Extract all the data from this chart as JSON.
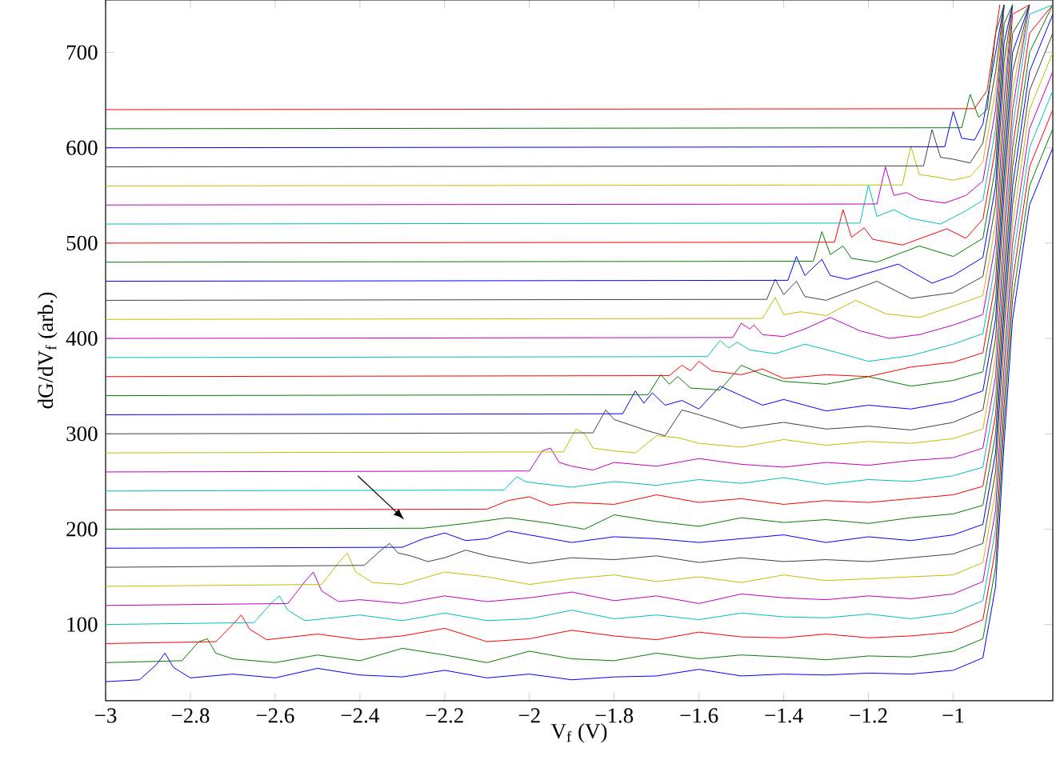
{
  "chart_data": {
    "type": "line",
    "xlabel": "V$_{f}$ (V)",
    "ylabel": "dG/dV$_{f}$ (arb.)",
    "marker": "none",
    "line_style": "solid",
    "xlim": [
      -3,
      -0.765
    ],
    "ylim": [
      20,
      755
    ],
    "xticks": [
      {
        "value": -3,
        "label": "−3"
      },
      {
        "value": -2.8,
        "label": "−2.8"
      },
      {
        "value": -2.6,
        "label": "−2.6"
      },
      {
        "value": -2.4,
        "label": "−2.4"
      },
      {
        "value": -2.2,
        "label": "−2.2"
      },
      {
        "value": -2,
        "label": "−2"
      },
      {
        "value": -1.8,
        "label": "−1.8"
      },
      {
        "value": -1.6,
        "label": "−1.6"
      },
      {
        "value": -1.4,
        "label": "−1.4"
      },
      {
        "value": -1.2,
        "label": "−1.2"
      },
      {
        "value": -1,
        "label": "−1"
      }
    ],
    "yticks": [
      100,
      200,
      300,
      400,
      500,
      600,
      700
    ],
    "series": [
      {
        "color": "#0000ff",
        "x": [
          -3,
          -2.92,
          -2.88,
          -2.86,
          -2.84,
          -2.8,
          -2.7,
          -2.6,
          -2.5,
          -2.4,
          -2.3,
          -2.2,
          -2.1,
          -2.0,
          -1.9,
          -1.8,
          -1.7,
          -1.6,
          -1.5,
          -1.4,
          -1.3,
          -1.2,
          -1.1,
          -1.0,
          -0.93,
          -0.9,
          -0.88,
          -0.86,
          -0.82,
          -0.765
        ],
        "values": [
          40,
          42,
          58,
          70,
          55,
          44,
          48,
          44,
          54,
          47,
          45,
          52,
          44,
          48,
          42,
          45,
          46,
          53,
          46,
          48,
          47,
          49,
          48,
          52,
          65,
          140,
          290,
          420,
          540,
          600
        ]
      },
      {
        "color": "#008000",
        "x": [
          -3,
          -2.82,
          -2.78,
          -2.76,
          -2.74,
          -2.7,
          -2.6,
          -2.5,
          -2.4,
          -2.3,
          -2.2,
          -2.1,
          -2.0,
          -1.9,
          -1.8,
          -1.7,
          -1.6,
          -1.5,
          -1.4,
          -1.3,
          -1.2,
          -1.1,
          -1.0,
          -0.93,
          -0.9,
          -0.88,
          -0.86,
          -0.82,
          -0.765
        ],
        "values": [
          60,
          62,
          82,
          85,
          70,
          64,
          60,
          68,
          62,
          75,
          68,
          60,
          72,
          64,
          62,
          70,
          64,
          68,
          66,
          63,
          67,
          66,
          72,
          85,
          160,
          310,
          440,
          560,
          620
        ]
      },
      {
        "color": "#ff0000",
        "x": [
          -3,
          -2.74,
          -2.7,
          -2.68,
          -2.66,
          -2.62,
          -2.5,
          -2.4,
          -2.3,
          -2.2,
          -2.1,
          -2.0,
          -1.9,
          -1.8,
          -1.7,
          -1.6,
          -1.5,
          -1.4,
          -1.3,
          -1.2,
          -1.1,
          -1.0,
          -0.93,
          -0.9,
          -0.88,
          -0.86,
          -0.82,
          -0.765
        ],
        "values": [
          80,
          82,
          100,
          110,
          95,
          84,
          90,
          84,
          88,
          96,
          82,
          85,
          94,
          88,
          84,
          92,
          87,
          86,
          90,
          86,
          88,
          92,
          105,
          180,
          330,
          460,
          580,
          640
        ]
      },
      {
        "color": "#00bfbf",
        "x": [
          -3,
          -2.65,
          -2.61,
          -2.59,
          -2.57,
          -2.53,
          -2.4,
          -2.3,
          -2.2,
          -2.1,
          -2.0,
          -1.9,
          -1.8,
          -1.7,
          -1.6,
          -1.5,
          -1.4,
          -1.3,
          -1.2,
          -1.1,
          -1.0,
          -0.93,
          -0.9,
          -0.88,
          -0.86,
          -0.82,
          -0.765
        ],
        "values": [
          100,
          102,
          122,
          130,
          115,
          104,
          110,
          104,
          112,
          104,
          106,
          115,
          106,
          110,
          105,
          112,
          108,
          107,
          111,
          106,
          112,
          125,
          200,
          350,
          480,
          600,
          660
        ]
      },
      {
        "color": "#bf00bf",
        "x": [
          -3,
          -2.57,
          -2.53,
          -2.51,
          -2.49,
          -2.45,
          -2.4,
          -2.3,
          -2.2,
          -2.1,
          -2.0,
          -1.9,
          -1.8,
          -1.7,
          -1.6,
          -1.5,
          -1.4,
          -1.3,
          -1.2,
          -1.1,
          -1.0,
          -0.93,
          -0.9,
          -0.88,
          -0.86,
          -0.82,
          -0.765
        ],
        "values": [
          120,
          122,
          145,
          155,
          135,
          124,
          126,
          122,
          130,
          124,
          128,
          134,
          125,
          130,
          122,
          132,
          128,
          126,
          130,
          127,
          132,
          145,
          220,
          370,
          500,
          620,
          680
        ]
      },
      {
        "color": "#bfbf00",
        "x": [
          -3,
          -2.49,
          -2.45,
          -2.43,
          -2.41,
          -2.37,
          -2.3,
          -2.2,
          -2.1,
          -2.0,
          -1.9,
          -1.8,
          -1.7,
          -1.6,
          -1.5,
          -1.4,
          -1.3,
          -1.2,
          -1.1,
          -1.0,
          -0.93,
          -0.9,
          -0.88,
          -0.86,
          -0.82,
          -0.765
        ],
        "values": [
          140,
          142,
          165,
          175,
          155,
          144,
          142,
          155,
          150,
          142,
          148,
          152,
          145,
          150,
          144,
          152,
          146,
          148,
          150,
          152,
          165,
          240,
          390,
          520,
          640,
          700
        ]
      },
      {
        "color": "#404040",
        "x": [
          -3,
          -2.39,
          -2.35,
          -2.33,
          -2.31,
          -2.28,
          -2.24,
          -2.2,
          -2.15,
          -2.1,
          -2.0,
          -1.9,
          -1.8,
          -1.7,
          -1.6,
          -1.5,
          -1.4,
          -1.3,
          -1.2,
          -1.1,
          -1.0,
          -0.93,
          -0.9,
          -0.88,
          -0.86,
          -0.82,
          -0.765
        ],
        "values": [
          160,
          162,
          178,
          185,
          175,
          172,
          166,
          170,
          178,
          172,
          164,
          170,
          168,
          172,
          165,
          170,
          166,
          168,
          166,
          170,
          174,
          185,
          260,
          410,
          540,
          660,
          720
        ]
      },
      {
        "color": "#0000ff",
        "x": [
          -3,
          -2.3,
          -2.25,
          -2.2,
          -2.15,
          -2.1,
          -2.05,
          -2.0,
          -1.9,
          -1.8,
          -1.7,
          -1.6,
          -1.5,
          -1.4,
          -1.3,
          -1.2,
          -1.1,
          -1.0,
          -0.93,
          -0.9,
          -0.88,
          -0.86,
          -0.82,
          -0.765
        ],
        "values": [
          180,
          181,
          190,
          196,
          188,
          190,
          198,
          194,
          186,
          192,
          190,
          186,
          190,
          194,
          186,
          192,
          188,
          194,
          205,
          280,
          430,
          560,
          680,
          740
        ]
      },
      {
        "color": "#008000",
        "x": [
          -3,
          -2.25,
          -2.15,
          -2.05,
          -1.95,
          -1.87,
          -1.8,
          -1.7,
          -1.6,
          -1.5,
          -1.4,
          -1.3,
          -1.2,
          -1.1,
          -1.0,
          -0.93,
          -0.9,
          -0.88,
          -0.86,
          -0.82,
          -0.765
        ],
        "values": [
          200,
          201,
          206,
          212,
          206,
          200,
          215,
          208,
          203,
          212,
          207,
          210,
          206,
          212,
          216,
          225,
          300,
          450,
          580,
          700,
          750
        ]
      },
      {
        "color": "#ff0000",
        "x": [
          -3,
          -2.1,
          -2.05,
          -2.0,
          -1.95,
          -1.9,
          -1.8,
          -1.7,
          -1.6,
          -1.5,
          -1.4,
          -1.3,
          -1.2,
          -1.1,
          -1.0,
          -0.93,
          -0.9,
          -0.88,
          -0.86,
          -0.82,
          -0.765
        ],
        "values": [
          220,
          221,
          230,
          234,
          225,
          228,
          226,
          236,
          228,
          232,
          226,
          230,
          228,
          232,
          236,
          245,
          320,
          470,
          600,
          720,
          750
        ]
      },
      {
        "color": "#00bfbf",
        "x": [
          -3,
          -2.06,
          -2.03,
          -2.01,
          -1.98,
          -1.9,
          -1.8,
          -1.7,
          -1.6,
          -1.5,
          -1.4,
          -1.3,
          -1.2,
          -1.1,
          -1.0,
          -0.93,
          -0.9,
          -0.88,
          -0.86,
          -0.82,
          -0.765
        ],
        "values": [
          240,
          241,
          255,
          250,
          248,
          244,
          250,
          246,
          252,
          248,
          254,
          247,
          252,
          250,
          256,
          265,
          340,
          490,
          620,
          740,
          750
        ]
      },
      {
        "color": "#bf00bf",
        "x": [
          -3,
          -2.0,
          -1.97,
          -1.95,
          -1.93,
          -1.9,
          -1.85,
          -1.8,
          -1.7,
          -1.6,
          -1.5,
          -1.4,
          -1.3,
          -1.2,
          -1.1,
          -1.0,
          -0.93,
          -0.9,
          -0.88,
          -0.86,
          -0.82
        ],
        "values": [
          260,
          261,
          282,
          285,
          270,
          266,
          262,
          270,
          266,
          274,
          268,
          265,
          270,
          267,
          272,
          275,
          285,
          360,
          510,
          640,
          750
        ]
      },
      {
        "color": "#bfbf00",
        "x": [
          -3,
          -1.92,
          -1.89,
          -1.87,
          -1.85,
          -1.8,
          -1.75,
          -1.7,
          -1.65,
          -1.6,
          -1.5,
          -1.4,
          -1.3,
          -1.2,
          -1.1,
          -1.0,
          -0.93,
          -0.9,
          -0.88,
          -0.86,
          -0.82
        ],
        "values": [
          280,
          281,
          305,
          300,
          285,
          282,
          280,
          298,
          296,
          290,
          286,
          294,
          288,
          292,
          290,
          295,
          305,
          380,
          530,
          660,
          750
        ]
      },
      {
        "color": "#404040",
        "x": [
          -3,
          -1.85,
          -1.82,
          -1.8,
          -1.78,
          -1.72,
          -1.68,
          -1.64,
          -1.6,
          -1.5,
          -1.4,
          -1.3,
          -1.2,
          -1.1,
          -1.0,
          -0.93,
          -0.9,
          -0.88,
          -0.86,
          -0.82
        ],
        "values": [
          300,
          301,
          325,
          315,
          312,
          303,
          298,
          325,
          320,
          306,
          312,
          305,
          308,
          304,
          312,
          325,
          400,
          550,
          680,
          750
        ]
      },
      {
        "color": "#0000ff",
        "x": [
          -3,
          -1.78,
          -1.75,
          -1.73,
          -1.71,
          -1.68,
          -1.64,
          -1.6,
          -1.55,
          -1.5,
          -1.45,
          -1.4,
          -1.3,
          -1.2,
          -1.1,
          -1.0,
          -0.93,
          -0.9,
          -0.88,
          -0.86,
          -0.82
        ],
        "values": [
          320,
          321,
          345,
          332,
          343,
          330,
          335,
          326,
          350,
          340,
          330,
          336,
          324,
          330,
          326,
          334,
          345,
          420,
          570,
          700,
          750
        ]
      },
      {
        "color": "#008000",
        "x": [
          -3,
          -1.72,
          -1.69,
          -1.67,
          -1.65,
          -1.62,
          -1.55,
          -1.5,
          -1.45,
          -1.4,
          -1.3,
          -1.2,
          -1.1,
          -1.0,
          -0.93,
          -0.9,
          -0.88,
          -0.86,
          -0.82
        ],
        "values": [
          340,
          341,
          362,
          352,
          360,
          348,
          346,
          372,
          362,
          355,
          352,
          360,
          350,
          356,
          365,
          440,
          590,
          720,
          750
        ]
      },
      {
        "color": "#ff0000",
        "x": [
          -3,
          -1.67,
          -1.64,
          -1.62,
          -1.6,
          -1.57,
          -1.5,
          -1.45,
          -1.4,
          -1.3,
          -1.2,
          -1.1,
          -1.0,
          -0.93,
          -0.9,
          -0.88,
          -0.86,
          -0.82
        ],
        "values": [
          360,
          361,
          372,
          366,
          376,
          366,
          362,
          368,
          358,
          362,
          360,
          370,
          375,
          385,
          460,
          610,
          740,
          750
        ]
      },
      {
        "color": "#00bfbf",
        "x": [
          -3,
          -1.58,
          -1.55,
          -1.53,
          -1.51,
          -1.48,
          -1.42,
          -1.35,
          -1.28,
          -1.2,
          -1.1,
          -1.0,
          -0.93,
          -0.9,
          -0.88,
          -0.86
        ],
        "values": [
          380,
          381,
          398,
          390,
          396,
          388,
          384,
          394,
          386,
          376,
          382,
          394,
          405,
          480,
          630,
          750
        ]
      },
      {
        "color": "#bf00bf",
        "x": [
          -3,
          -1.52,
          -1.5,
          -1.48,
          -1.47,
          -1.45,
          -1.4,
          -1.35,
          -1.29,
          -1.22,
          -1.15,
          -1.08,
          -1.0,
          -0.93,
          -0.9,
          -0.88,
          -0.86
        ],
        "values": [
          400,
          401,
          416,
          410,
          414,
          404,
          402,
          410,
          422,
          408,
          400,
          404,
          414,
          425,
          500,
          650,
          750
        ]
      },
      {
        "color": "#bfbf00",
        "x": [
          -3,
          -1.45,
          -1.42,
          -1.4,
          -1.36,
          -1.3,
          -1.23,
          -1.16,
          -1.08,
          -1.0,
          -0.93,
          -0.9,
          -0.88,
          -0.86
        ],
        "values": [
          420,
          421,
          443,
          425,
          428,
          424,
          440,
          426,
          422,
          434,
          445,
          520,
          670,
          750
        ]
      },
      {
        "color": "#404040",
        "x": [
          -3,
          -1.44,
          -1.42,
          -1.4,
          -1.37,
          -1.35,
          -1.3,
          -1.18,
          -1.1,
          -1.0,
          -0.93,
          -0.9,
          -0.88,
          -0.86
        ],
        "values": [
          440,
          441,
          462,
          446,
          460,
          444,
          440,
          460,
          442,
          448,
          465,
          540,
          690,
          750
        ]
      },
      {
        "color": "#0000ff",
        "x": [
          -3,
          -1.39,
          -1.37,
          -1.35,
          -1.31,
          -1.29,
          -1.25,
          -1.13,
          -1.05,
          -1.0,
          -0.93,
          -0.9,
          -0.88,
          -0.86
        ],
        "values": [
          460,
          461,
          486,
          466,
          483,
          466,
          462,
          478,
          458,
          466,
          485,
          560,
          710,
          750
        ]
      },
      {
        "color": "#008000",
        "x": [
          -3,
          -1.33,
          -1.31,
          -1.29,
          -1.26,
          -1.24,
          -1.18,
          -1.08,
          -1.0,
          -0.93,
          -0.9,
          -0.88,
          -0.86
        ],
        "values": [
          480,
          481,
          512,
          488,
          497,
          484,
          480,
          497,
          486,
          505,
          580,
          730,
          750
        ]
      },
      {
        "color": "#ff0000",
        "x": [
          -3,
          -1.28,
          -1.26,
          -1.24,
          -1.21,
          -1.19,
          -1.12,
          -1.015,
          -0.97,
          -0.93,
          -0.9,
          -0.88
        ],
        "values": [
          500,
          501,
          535,
          506,
          516,
          504,
          498,
          515,
          505,
          525,
          600,
          750
        ]
      },
      {
        "color": "#00bfbf",
        "x": [
          -3,
          -1.22,
          -1.2,
          -1.18,
          -1.14,
          -1.1,
          -1.03,
          -0.97,
          -0.93,
          -0.9,
          -0.88
        ],
        "values": [
          520,
          521,
          561,
          528,
          535,
          526,
          520,
          534,
          545,
          620,
          750
        ]
      },
      {
        "color": "#bf00bf",
        "x": [
          -3,
          -1.18,
          -1.16,
          -1.14,
          -1.11,
          -1.08,
          -1.02,
          -0.97,
          -0.93,
          -0.9,
          -0.88
        ],
        "values": [
          540,
          541,
          580,
          550,
          553,
          546,
          542,
          550,
          565,
          640,
          750
        ]
      },
      {
        "color": "#bfbf00",
        "x": [
          -3,
          -1.12,
          -1.1,
          -1.08,
          -1.05,
          -1.0,
          -0.96,
          -0.93,
          -0.9,
          -0.88
        ],
        "values": [
          560,
          561,
          602,
          572,
          570,
          566,
          570,
          585,
          660,
          750
        ]
      },
      {
        "color": "#404040",
        "x": [
          -3,
          -1.07,
          -1.05,
          -1.03,
          -1.0,
          -0.96,
          -0.93,
          -0.9,
          -0.88
        ],
        "values": [
          580,
          581,
          619,
          590,
          588,
          584,
          605,
          680,
          750
        ]
      },
      {
        "color": "#0000ff",
        "x": [
          -3,
          -1.02,
          -1.0,
          -0.98,
          -0.95,
          -0.93,
          -0.9,
          -0.88
        ],
        "values": [
          600,
          601,
          638,
          610,
          608,
          625,
          700,
          750
        ]
      },
      {
        "color": "#008000",
        "x": [
          -3,
          -0.98,
          -0.96,
          -0.94,
          -0.92,
          -0.9,
          -0.88
        ],
        "values": [
          620,
          621,
          656,
          632,
          640,
          720,
          750
        ]
      },
      {
        "color": "#ff0000",
        "x": [
          -3,
          -0.95,
          -0.92,
          -0.9,
          -0.89
        ],
        "values": [
          640,
          641,
          660,
          720,
          750
        ]
      }
    ]
  }
}
